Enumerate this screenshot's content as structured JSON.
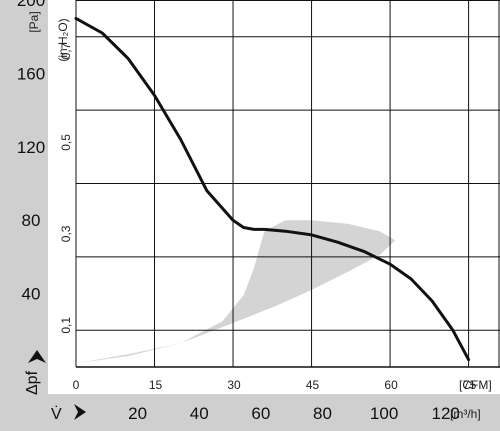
{
  "chart_data": {
    "type": "line",
    "title": "",
    "y_unit_left": "[Pa]",
    "y_unit_inh2o": "(in H₂O)",
    "x_unit_cfm": "[CFM]",
    "x_unit_m3h": "[m³/h]",
    "y_symbol": "Δpf",
    "x_symbol": "V̇",
    "xlim_cfm": [
      0,
      81
    ],
    "ylim_pa": [
      0,
      200
    ],
    "grid": true,
    "y_ticks_pa": [
      "40",
      "80",
      "120",
      "160",
      "200"
    ],
    "y_ticks_inh2o": [
      "0,1",
      "0,3",
      "0,5",
      "0,7"
    ],
    "x_ticks_cfm": [
      "0",
      "15",
      "30",
      "45",
      "60",
      "75"
    ],
    "x_ticks_m3h": [
      "20",
      "40",
      "60",
      "80",
      "100",
      "120"
    ],
    "series": [
      {
        "points": [
          [
            0,
            190
          ],
          [
            5,
            182
          ],
          [
            10,
            168
          ],
          [
            15,
            148
          ],
          [
            20,
            124
          ],
          [
            25,
            96
          ],
          [
            30,
            80
          ],
          [
            32,
            76
          ],
          [
            34,
            75
          ],
          [
            36,
            75
          ],
          [
            40,
            74
          ],
          [
            45,
            72
          ],
          [
            50,
            68
          ],
          [
            55,
            63
          ],
          [
            60,
            56
          ],
          [
            64,
            48
          ],
          [
            68,
            36
          ],
          [
            72,
            20
          ],
          [
            75,
            4
          ]
        ]
      }
    ],
    "operating_region": {
      "upper_edge": [
        [
          0,
          2
        ],
        [
          10,
          7
        ],
        [
          20,
          13
        ],
        [
          28,
          25
        ],
        [
          32,
          39
        ],
        [
          34,
          54
        ],
        [
          36,
          74
        ],
        [
          40,
          80
        ],
        [
          45,
          80
        ],
        [
          52,
          78
        ],
        [
          58,
          74
        ],
        [
          61,
          69
        ]
      ],
      "lower_edge": [
        [
          61,
          69
        ],
        [
          58,
          61
        ],
        [
          52,
          52
        ],
        [
          45,
          42
        ],
        [
          38,
          33
        ],
        [
          30,
          24
        ],
        [
          20,
          13
        ],
        [
          10,
          6
        ],
        [
          0,
          2
        ]
      ]
    },
    "colors": {
      "curve": "#111111",
      "region": "#d4d4d4",
      "grid": "#111111",
      "margin_band": "#cfcfcf"
    }
  }
}
